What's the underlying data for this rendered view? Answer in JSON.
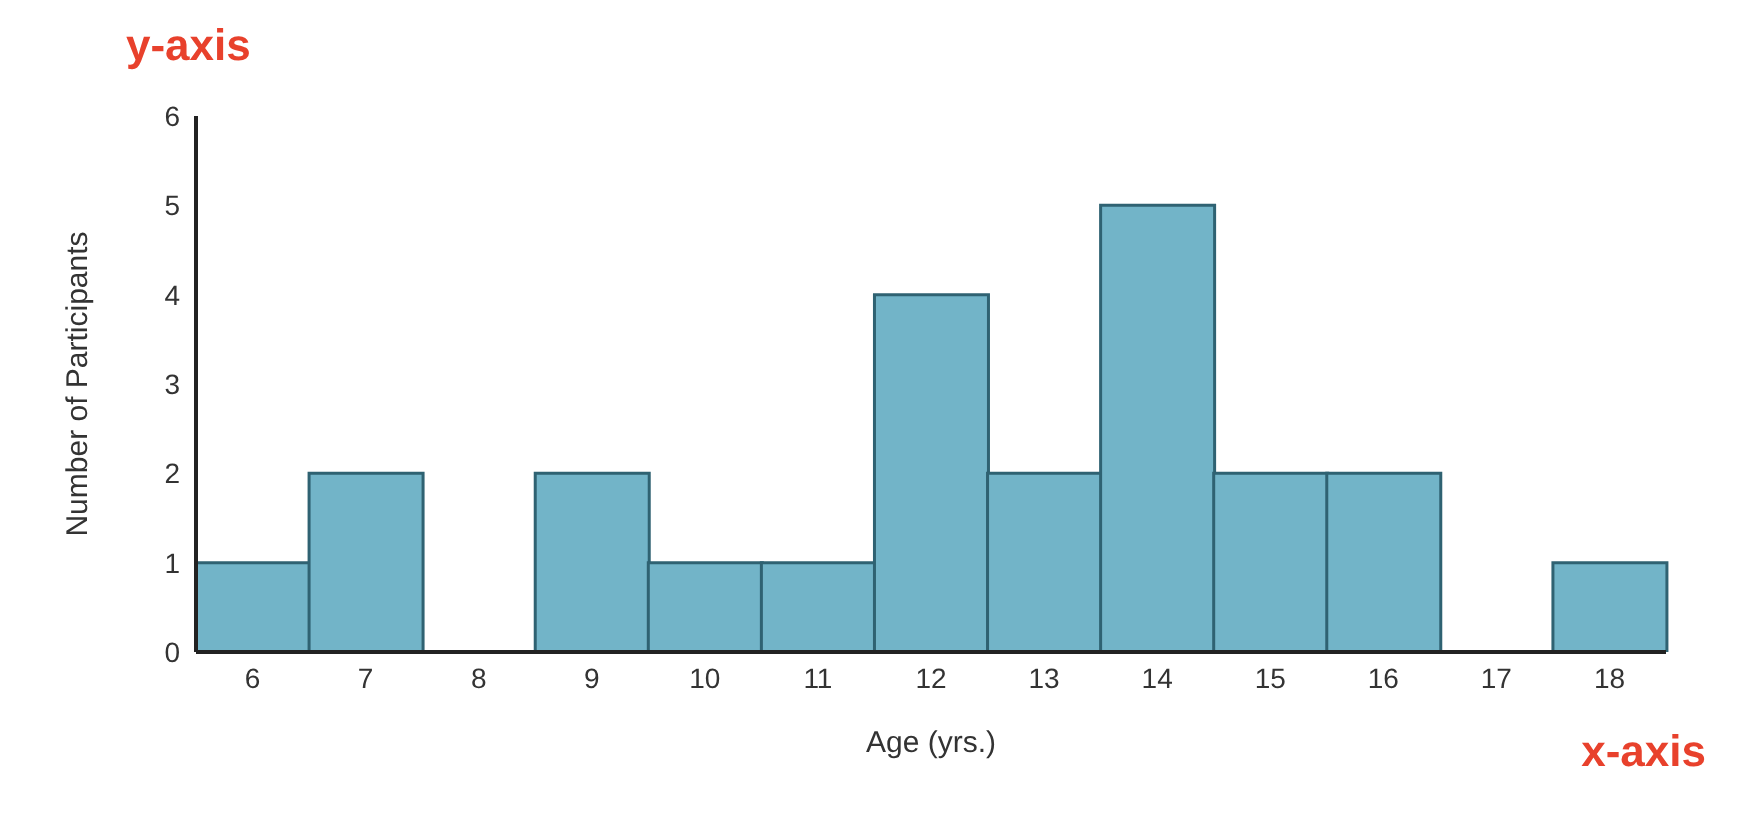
{
  "chart_data": {
    "type": "bar",
    "categories": [
      "6",
      "7",
      "8",
      "9",
      "10",
      "11",
      "12",
      "13",
      "14",
      "15",
      "16",
      "17",
      "18"
    ],
    "values": [
      1,
      2,
      0,
      2,
      1,
      1,
      4,
      2,
      5,
      2,
      2,
      0,
      1
    ],
    "color": "#72b4c8",
    "xlabel": "Age (yrs.)",
    "ylabel": "Number of Participants",
    "ylim": [
      0,
      6
    ],
    "yticks": [
      0,
      1,
      2,
      3,
      4,
      5,
      6
    ],
    "grid": false,
    "annotations": [
      "y-axis",
      "x-axis"
    ]
  }
}
